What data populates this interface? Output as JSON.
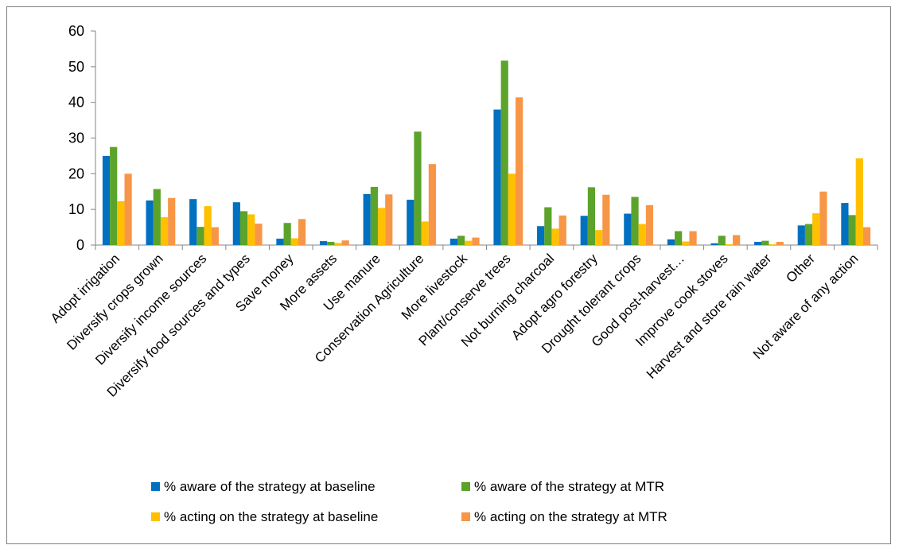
{
  "chart_data": {
    "type": "bar",
    "title": "",
    "xlabel": "",
    "ylabel": "",
    "ylim": [
      0,
      60
    ],
    "yticks": [
      0,
      10,
      20,
      30,
      40,
      50,
      60
    ],
    "grid": false,
    "legend_position": "bottom",
    "categories": [
      "Adopt irrigation",
      "Diversify crops grown",
      "Diversify income sources",
      "Diversify food sources and types",
      "Save money",
      "More assets",
      "Use manure",
      "Conservation Agriculture",
      "More livestock",
      "Plant/conserve trees",
      "Not burning charcoal",
      "Adopt agro forestry",
      "Drought tolerant crops",
      "Good post-harvest…",
      "Improve cook stoves",
      "Harvest and store rain water",
      "Other",
      "Not aware of any action"
    ],
    "series": [
      {
        "name": "% aware of the strategy  at baseline",
        "color": "#0070c0",
        "values": [
          25,
          12.5,
          12.9,
          12,
          1.8,
          1.1,
          14.3,
          12.7,
          1.8,
          38,
          5.3,
          8.2,
          8.8,
          1.6,
          0.5,
          0.9,
          5.5,
          11.8
        ]
      },
      {
        "name": "% aware of the strategy at MTR",
        "color": "#5ba32b",
        "values": [
          27.5,
          15.7,
          5.1,
          9.5,
          6.2,
          0.9,
          16.3,
          31.8,
          2.6,
          51.7,
          10.6,
          16.2,
          13.5,
          3.9,
          2.6,
          1.2,
          5.9,
          8.4
        ]
      },
      {
        "name": "% acting on the strategy  at baseline",
        "color": "#ffc000",
        "values": [
          12.3,
          7.8,
          10.9,
          8.6,
          1.9,
          0.6,
          10.4,
          6.6,
          1.2,
          20,
          4.6,
          4.2,
          5.9,
          1,
          0.2,
          0.2,
          8.9,
          24.3
        ]
      },
      {
        "name": "% acting on the strategy at MTR",
        "color": "#f79646",
        "values": [
          20,
          13.2,
          5,
          6,
          7.3,
          1.3,
          14.2,
          22.7,
          2.1,
          41.4,
          8.3,
          14.1,
          11.2,
          3.9,
          2.8,
          0.9,
          15,
          5
        ]
      }
    ]
  }
}
